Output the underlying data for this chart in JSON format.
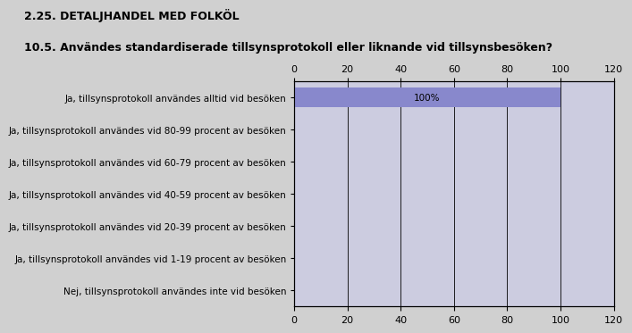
{
  "title": "2.25. DETALJHANDEL MED FOLKÖL",
  "subtitle": "10.5. Användes standardiserade tillsynsprotokoll eller liknande vid tillsynsbesöken?",
  "categories": [
    "Ja, tillsynsprotokoll användes alltid vid besöken",
    "Ja, tillsynsprotokoll användes vid 80-99 procent av besöken",
    "Ja, tillsynsprotokoll användes vid 60-79 procent av besöken",
    "Ja, tillsynsprotokoll användes vid 40-59 procent av besöken",
    "Ja, tillsynsprotokoll användes vid 20-39 procent av besöken",
    "Ja, tillsynsprotokoll användes vid 1-19 procent av besöken",
    "Nej, tillsynsprotokoll användes inte vid besöken"
  ],
  "values": [
    100,
    0,
    0,
    0,
    0,
    0,
    0
  ],
  "bar_color": "#8888cc",
  "plot_bg_color": "#cccce0",
  "bar_label": "100%",
  "xlim": [
    0,
    120
  ],
  "xticks": [
    0,
    20,
    40,
    60,
    80,
    100,
    120
  ],
  "background_color": "#d0d0d0",
  "title_fontsize": 9,
  "subtitle_fontsize": 9,
  "label_fontsize": 7.5,
  "tick_fontsize": 8
}
